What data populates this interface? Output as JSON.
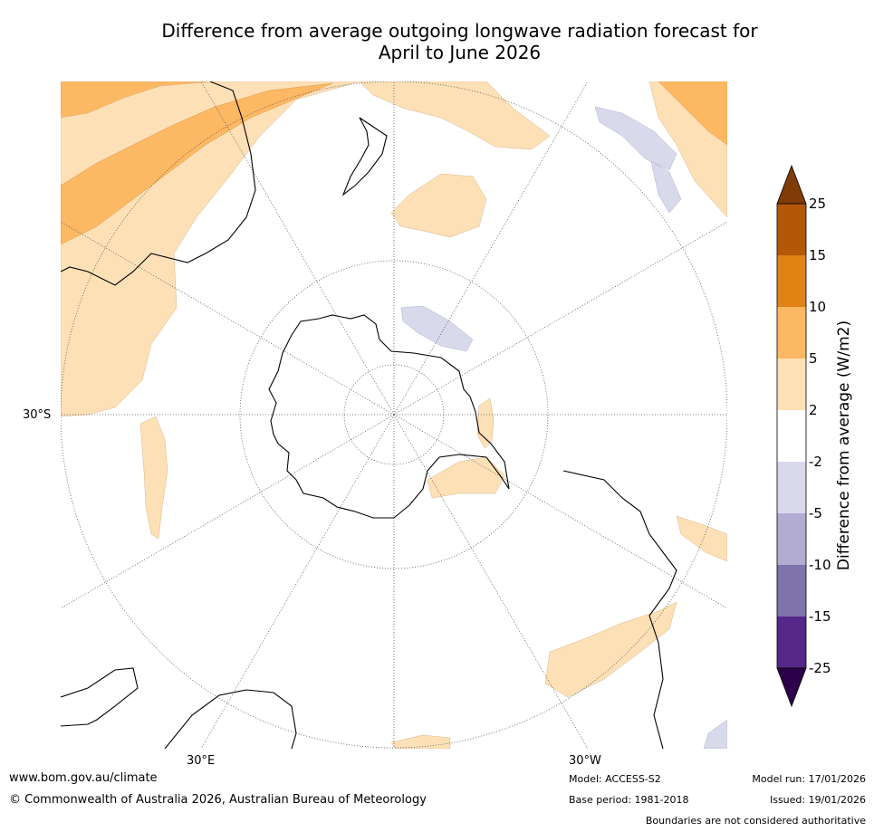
{
  "title": {
    "line1": "Difference from average outgoing longwave radiation forecast for",
    "line2": "April to June 2026"
  },
  "map": {
    "lat_label": "30°S",
    "lon_labels": [
      "30°E",
      "30°W"
    ]
  },
  "colorbar": {
    "label": "Difference from average (W/m2)",
    "ticks": [
      "25",
      "15",
      "10",
      "5",
      "2",
      "-2",
      "-5",
      "-10",
      "-15",
      "-25"
    ],
    "colors": {
      "above25": "#7f3b08",
      "15to25": "#b35806",
      "10to15": "#e08214",
      "5to10": "#fdb863",
      "2to5": "#fee0b6",
      "neutral": "#ffffff",
      "-5to-2": "#d8daeb",
      "-10to-5": "#b2abd2",
      "-15to-10": "#8073ac",
      "-25to-15": "#542788",
      "below-25": "#2d004b"
    }
  },
  "footer": {
    "website": "www.bom.gov.au/climate",
    "copyright": "© Commonwealth of Australia 2026, Australian Bureau of Meteorology",
    "model": "Model: ACCESS-S2",
    "base_period": "Base period: 1981-2018",
    "model_run": "Model run: 17/01/2026",
    "issued": "Issued: 19/01/2026",
    "disclaimer": "Boundaries are not considered authoritative"
  }
}
